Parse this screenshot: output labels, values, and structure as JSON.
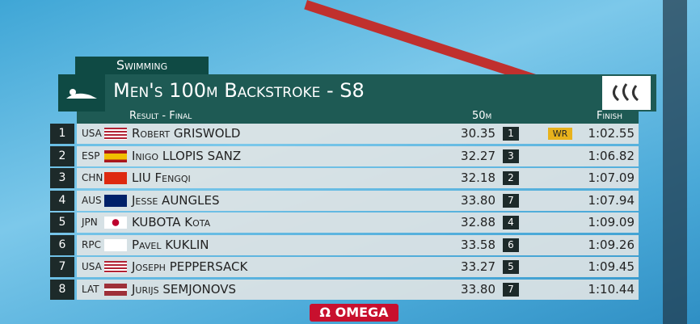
{
  "header": {
    "category": "Swimming",
    "title": "Men's 100m Backstroke - S8",
    "subtitle": "Result - Final",
    "col_split": "50m",
    "col_finish": "Finish"
  },
  "table": {
    "rows": [
      {
        "rank": "1",
        "country": "USA",
        "name": "Robert GRISWOLD",
        "split": "30.35",
        "split_rank": "1",
        "record": "WR",
        "finish": "1:02.55"
      },
      {
        "rank": "2",
        "country": "ESP",
        "name": "Inigo LLOPIS SANZ",
        "split": "32.27",
        "split_rank": "3",
        "finish": "1:06.82"
      },
      {
        "rank": "3",
        "country": "CHN",
        "name": "LIU Fengqi",
        "split": "32.18",
        "split_rank": "2",
        "finish": "1:07.09"
      },
      {
        "rank": "4",
        "country": "AUS",
        "name": "Jesse AUNGLES",
        "split": "33.80",
        "split_rank": "7",
        "finish": "1:07.94"
      },
      {
        "rank": "5",
        "country": "JPN",
        "name": "KUBOTA Kota",
        "split": "32.88",
        "split_rank": "4",
        "finish": "1:09.09"
      },
      {
        "rank": "6",
        "country": "RPC",
        "name": "Pavel KUKLIN",
        "split": "33.58",
        "split_rank": "6",
        "finish": "1:09.26"
      },
      {
        "rank": "7",
        "country": "USA",
        "name": "Joseph PEPPERSACK",
        "split": "33.27",
        "split_rank": "5",
        "finish": "1:09.45"
      },
      {
        "rank": "8",
        "country": "LAT",
        "name": "Jurijs SEMJONOVS",
        "split": "33.80",
        "split_rank": "7",
        "finish": "1:10.44"
      }
    ]
  },
  "footer": {
    "sponsor": "OMEGA"
  }
}
